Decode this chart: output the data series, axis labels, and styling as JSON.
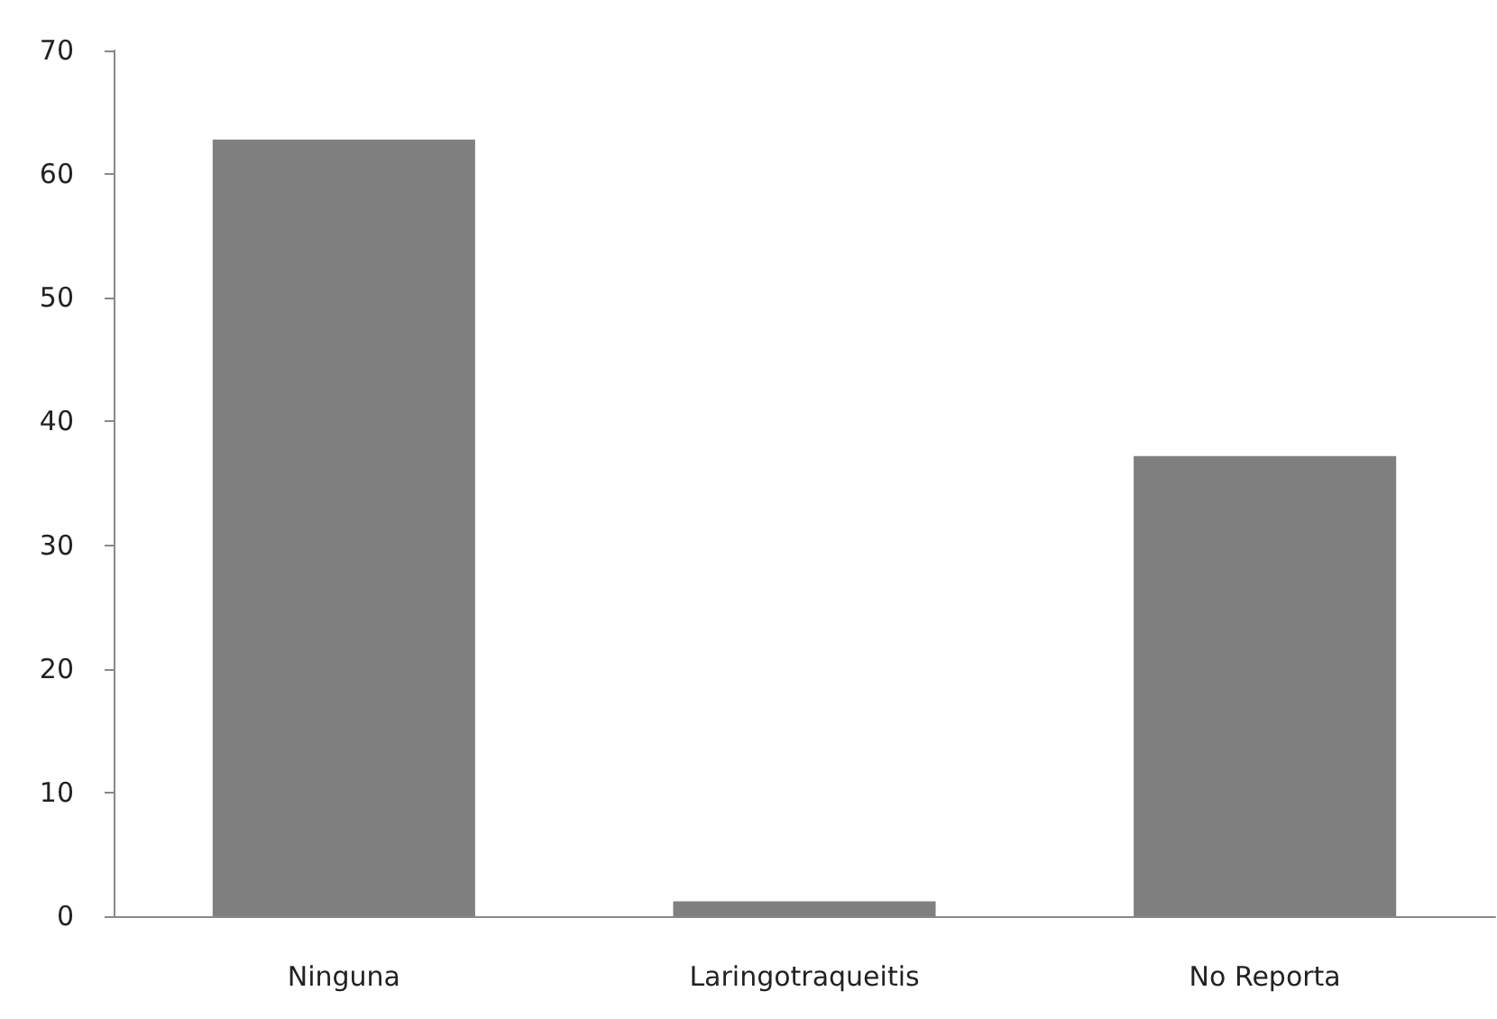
{
  "chart_data": {
    "type": "bar",
    "categories": [
      "Ninguna",
      "Laringotraqueitis",
      "No Reporta"
    ],
    "series": [
      {
        "color": "#7f7f7f",
        "values": [
          62.8,
          1.2,
          37.2
        ]
      }
    ],
    "ylim": [
      0,
      70
    ],
    "yticks": [
      0,
      10,
      20,
      30,
      40,
      50,
      60,
      70
    ],
    "grid": false
  }
}
